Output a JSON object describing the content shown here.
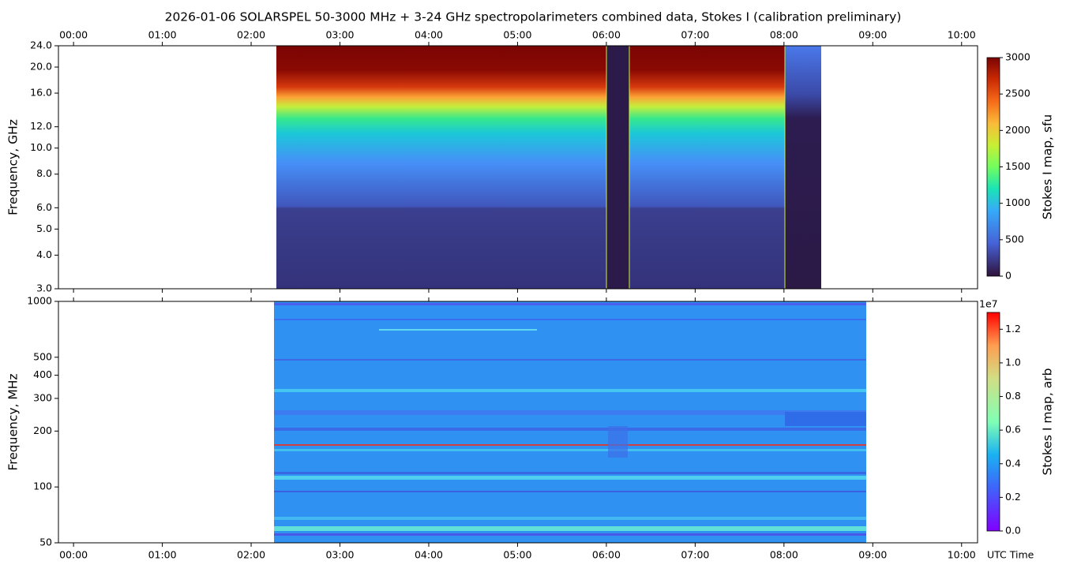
{
  "chart_data": [
    {
      "type": "heatmap",
      "title": "2026-01-06  SOLARSPEL  50-3000 MHz  +  3-24 GHz  spectropolarimeters combined data,  Stokes I  (calibration preliminary)",
      "y_label": "Frequency, GHz",
      "xlim": [
        -0.17,
        10.18
      ],
      "xticks": [
        {
          "value": 0,
          "label": "00:00"
        },
        {
          "value": 1,
          "label": "01:00"
        },
        {
          "value": 2,
          "label": "02:00"
        },
        {
          "value": 3,
          "label": "03:00"
        },
        {
          "value": 4,
          "label": "04:00"
        },
        {
          "value": 5,
          "label": "05:00"
        },
        {
          "value": 6,
          "label": "06:00"
        },
        {
          "value": 7,
          "label": "07:00"
        },
        {
          "value": 8,
          "label": "08:00"
        },
        {
          "value": 9,
          "label": "09:00"
        },
        {
          "value": 10,
          "label": "10:00"
        }
      ],
      "xtick_labels_side": "top",
      "yscale": "log",
      "ylim": [
        3,
        24
      ],
      "yticks": [
        {
          "value": 3,
          "label": "3.0"
        },
        {
          "value": 4,
          "label": "4.0"
        },
        {
          "value": 5,
          "label": "5.0"
        },
        {
          "value": 6,
          "label": "6.0"
        },
        {
          "value": 8,
          "label": "8.0"
        },
        {
          "value": 10,
          "label": "10.0"
        },
        {
          "value": 12,
          "label": "12.0"
        },
        {
          "value": 16,
          "label": "16.0"
        },
        {
          "value": 20,
          "label": "20.0"
        },
        {
          "value": 24,
          "label": "24.0"
        }
      ],
      "colorbar": {
        "label": "Stokes I map, sfu",
        "colormap": "turbo",
        "lim": [
          0,
          3000
        ],
        "ticks": [
          0,
          500,
          1000,
          1500,
          2000,
          2500,
          3000
        ]
      }
    },
    {
      "type": "heatmap",
      "y_label": "Frequency, MHz",
      "x_label": "UTC Time",
      "xlim": [
        -0.17,
        10.18
      ],
      "xticks": [
        {
          "value": 0,
          "label": "00:00"
        },
        {
          "value": 1,
          "label": "01:00"
        },
        {
          "value": 2,
          "label": "02:00"
        },
        {
          "value": 3,
          "label": "03:00"
        },
        {
          "value": 4,
          "label": "04:00"
        },
        {
          "value": 5,
          "label": "05:00"
        },
        {
          "value": 6,
          "label": "06:00"
        },
        {
          "value": 7,
          "label": "07:00"
        },
        {
          "value": 8,
          "label": "08:00"
        },
        {
          "value": 9,
          "label": "09:00"
        },
        {
          "value": 10,
          "label": "10:00"
        }
      ],
      "xtick_labels_side": "bottom",
      "yscale": "log",
      "ylim": [
        50,
        1000
      ],
      "yticks": [
        50,
        100,
        200,
        300,
        400,
        500,
        1000
      ],
      "colorbar": {
        "label": "Stokes I map, arb",
        "colormap": "rainbow",
        "offset_text": "1e7",
        "lim": [
          0,
          1.3
        ],
        "ticks": [
          {
            "value": 0,
            "label": "0.0"
          },
          0.2,
          0.4,
          0.6,
          0.8,
          {
            "value": 1,
            "label": "1.0"
          },
          1.2
        ]
      }
    }
  ]
}
